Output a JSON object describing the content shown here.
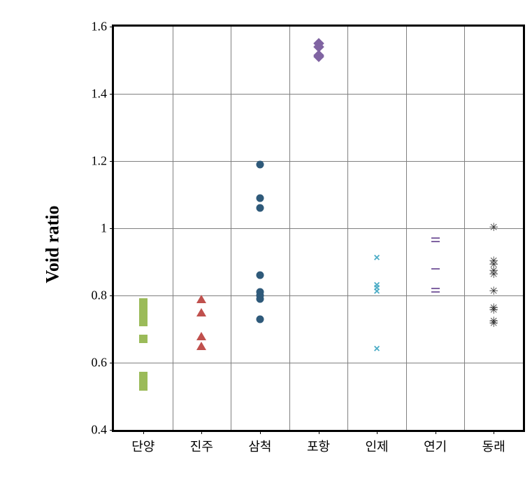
{
  "chart": {
    "type": "scatter",
    "ylabel": "Void ratio",
    "ylabel_fontsize": 26,
    "ylabel_fontweight": "bold",
    "ylim": [
      0.4,
      1.6
    ],
    "yticks": [
      0.4,
      0.6,
      0.8,
      1,
      1.2,
      1.4,
      1.6
    ],
    "ytick_fontsize": 18,
    "xtick_fontsize": 18,
    "categories": [
      "단양",
      "진주",
      "삼척",
      "포항",
      "인제",
      "연기",
      "동래"
    ],
    "background_color": "#ffffff",
    "grid_color": "#808080",
    "border_color": "#000000",
    "border_width": 3,
    "series": [
      {
        "name": "단양",
        "marker": "square",
        "color": "#9bbb59",
        "points": [
          0.78,
          0.77,
          0.76,
          0.75,
          0.74,
          0.73,
          0.72,
          0.67,
          0.56,
          0.55,
          0.54,
          0.53
        ]
      },
      {
        "name": "진주",
        "marker": "triangle",
        "color": "#c0504d",
        "points": [
          0.79,
          0.75,
          0.68,
          0.65
        ]
      },
      {
        "name": "삼척",
        "marker": "circle",
        "color": "#2f5a7a",
        "points": [
          1.19,
          1.09,
          1.06,
          0.86,
          0.81,
          0.8,
          0.79,
          0.73
        ]
      },
      {
        "name": "포항",
        "marker": "diamond",
        "color": "#8064a2",
        "points": [
          1.55,
          1.54,
          1.51,
          1.515
        ]
      },
      {
        "name": "인제",
        "marker": "x",
        "color": "#4bacc6",
        "points": [
          0.91,
          0.83,
          0.82,
          0.81,
          0.64
        ]
      },
      {
        "name": "연기",
        "marker": "dash",
        "color": "#8064a2",
        "points": [
          0.97,
          0.96,
          0.88,
          0.82,
          0.81
        ]
      },
      {
        "name": "동래",
        "marker": "star",
        "color": "#333333",
        "points": [
          1.0,
          0.9,
          0.89,
          0.87,
          0.86,
          0.81,
          0.76,
          0.755,
          0.72,
          0.715
        ]
      }
    ]
  }
}
